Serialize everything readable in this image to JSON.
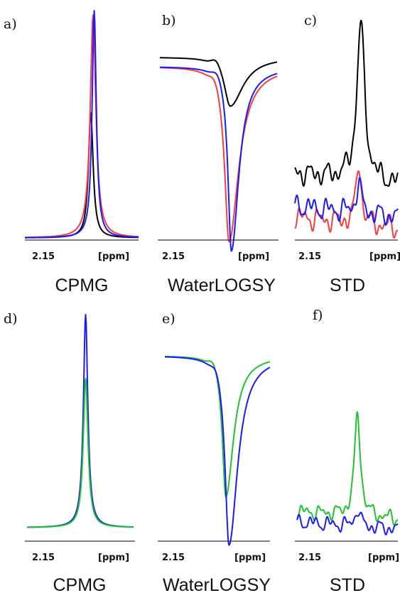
{
  "colors": {
    "black": "#000000",
    "red": "#ff3a3a",
    "blue": "#1a1aff",
    "green": "#22c22e"
  },
  "chart_data": [
    {
      "panel": "a)",
      "title": "CPMG",
      "type": "line",
      "x_tick_labels": [
        "2.15",
        "[ppm]"
      ],
      "series": [
        {
          "color": "black",
          "shape": "peak",
          "center": 0.58,
          "height": 0.55,
          "width": 0.025,
          "baseline": 0.0
        },
        {
          "color": "red",
          "shape": "peak",
          "center": 0.6,
          "height": 0.98,
          "width": 0.03,
          "baseline": 0.0
        },
        {
          "color": "blue",
          "shape": "peak",
          "center": 0.61,
          "height": 1.0,
          "width": 0.022,
          "baseline": 0.0
        }
      ]
    },
    {
      "panel": "b)",
      "title": "WaterLOGSY",
      "type": "line",
      "x_tick_labels": [
        "2.15",
        "[ppm]"
      ],
      "series": [
        {
          "color": "black",
          "shape": "dip",
          "center": 0.6,
          "depth": 0.26,
          "width": 0.06,
          "baseline": 0.96
        },
        {
          "color": "red",
          "shape": "dip",
          "center": 0.59,
          "depth": 0.93,
          "width": 0.045,
          "baseline": 0.91
        },
        {
          "color": "blue",
          "shape": "dip",
          "center": 0.61,
          "depth": 0.98,
          "width": 0.035,
          "baseline": 0.91
        }
      ]
    },
    {
      "panel": "c)",
      "title": "STD",
      "type": "line",
      "x_tick_labels": [
        "2.15",
        "[ppm]"
      ],
      "series": [
        {
          "color": "black",
          "shape": "noisy-peak",
          "center": 0.64,
          "height": 0.72,
          "width": 0.045,
          "baseline": 0.28
        },
        {
          "color": "red",
          "shape": "noisy-peak",
          "center": 0.62,
          "height": 0.28,
          "width": 0.03,
          "baseline": 0.08
        },
        {
          "color": "blue",
          "shape": "noisy-peak",
          "center": 0.62,
          "height": 0.14,
          "width": 0.03,
          "baseline": 0.13
        }
      ]
    },
    {
      "panel": "d)",
      "title": "CPMG",
      "type": "line",
      "x_tick_labels": [
        "2.15",
        "[ppm]"
      ],
      "series": [
        {
          "color": "blue",
          "shape": "peak",
          "center": 0.55,
          "height": 1.0,
          "width": 0.025,
          "baseline": 0.0
        },
        {
          "color": "green",
          "shape": "peak",
          "center": 0.55,
          "height": 0.7,
          "width": 0.027,
          "baseline": 0.0
        }
      ]
    },
    {
      "panel": "e)",
      "title": "WaterLOGSY",
      "type": "line",
      "x_tick_labels": [
        "2.15",
        "[ppm]"
      ],
      "series": [
        {
          "color": "green",
          "shape": "dip",
          "center": 0.58,
          "depth": 0.73,
          "width": 0.04,
          "baseline": 0.93
        },
        {
          "color": "blue",
          "shape": "dip",
          "center": 0.61,
          "depth": 0.98,
          "width": 0.045,
          "baseline": 0.93
        }
      ]
    },
    {
      "panel": "f)",
      "title": "STD",
      "type": "line",
      "x_tick_labels": [
        "2.15",
        "[ppm]"
      ],
      "series": [
        {
          "color": "green",
          "shape": "noisy-peak",
          "center": 0.6,
          "height": 0.7,
          "width": 0.035,
          "baseline": 0.12
        },
        {
          "color": "blue",
          "shape": "noisy-peak",
          "center": 0.6,
          "height": 0.12,
          "width": 0.03,
          "baseline": 0.05
        }
      ]
    }
  ]
}
